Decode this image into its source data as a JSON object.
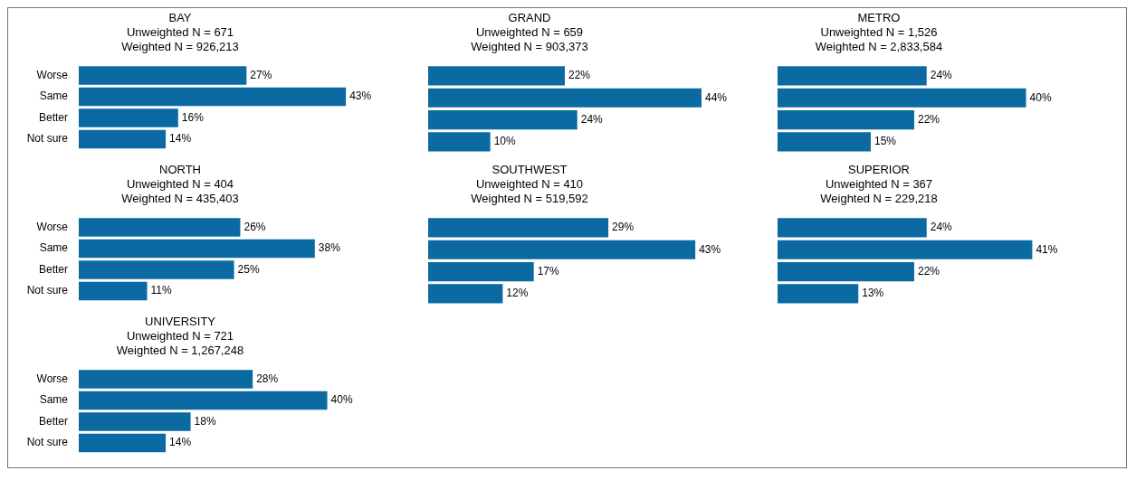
{
  "chart_data": [
    {
      "type": "bar",
      "orientation": "horizontal",
      "title": "BAY",
      "subtitle": "Unweighted N = 671\nWeighted N = 926,213",
      "categories": [
        "Worse",
        "Same",
        "Better",
        "Not sure"
      ],
      "values": [
        27,
        43,
        16,
        14
      ],
      "value_labels": [
        "27%",
        "43%",
        "16%",
        "14%"
      ],
      "color": "#0a6aa1",
      "legend": false,
      "tick_labels": "y"
    },
    {
      "type": "bar",
      "orientation": "horizontal",
      "title": "GRAND",
      "subtitle": "Unweighted N = 659\nWeighted N = 903,373",
      "categories": [
        null,
        null,
        null,
        null
      ],
      "values": [
        22,
        44,
        24,
        10
      ],
      "value_labels": [
        "22%",
        "44%",
        "24%",
        "10%"
      ],
      "color": "#0a6aa1",
      "legend": false,
      "tick_labels": false
    },
    {
      "type": "bar",
      "orientation": "horizontal",
      "title": "METRO",
      "subtitle": "Unweighted N = 1,526\nWeighted N = 2,833,584",
      "categories": [
        null,
        null,
        null,
        null
      ],
      "values": [
        24,
        40,
        22,
        15
      ],
      "value_labels": [
        "24%",
        "40%",
        "22%",
        "15%"
      ],
      "color": "#0a6aa1",
      "legend": false,
      "tick_labels": false
    },
    {
      "type": "bar",
      "orientation": "horizontal",
      "title": "NORTH",
      "subtitle": "Unweighted N = 404\nWeighted N = 435,403",
      "categories": [
        "Worse",
        "Same",
        "Better",
        "Not sure"
      ],
      "values": [
        26,
        38,
        25,
        11
      ],
      "value_labels": [
        "26%",
        "38%",
        "25%",
        "11%"
      ],
      "color": "#0a6aa1",
      "legend": false,
      "tick_labels": "y"
    },
    {
      "type": "bar",
      "orientation": "horizontal",
      "title": "SOUTHWEST",
      "subtitle": "Unweighted N = 410\nWeighted N = 519,592",
      "categories": [
        null,
        null,
        null,
        null
      ],
      "values": [
        29,
        43,
        17,
        12
      ],
      "value_labels": [
        "29%",
        "43%",
        "17%",
        "12%"
      ],
      "color": "#0a6aa1",
      "legend": false,
      "tick_labels": false
    },
    {
      "type": "bar",
      "orientation": "horizontal",
      "title": "SUPERIOR",
      "subtitle": "Unweighted N = 367\nWeighted N = 229,218",
      "categories": [
        null,
        null,
        null,
        null
      ],
      "values": [
        24,
        41,
        22,
        13
      ],
      "value_labels": [
        "24%",
        "41%",
        "22%",
        "13%"
      ],
      "color": "#0a6aa1",
      "legend": false,
      "tick_labels": false
    },
    {
      "type": "bar",
      "orientation": "horizontal",
      "title": "UNIVERSITY",
      "subtitle": "Unweighted N = 721\nWeighted N = 1,267,248",
      "categories": [
        "Worse",
        "Same",
        "Better",
        "Not sure"
      ],
      "values": [
        28,
        40,
        18,
        14
      ],
      "value_labels": [
        "28%",
        "40%",
        "18%",
        "14%"
      ],
      "color": "#0a6aa1",
      "legend": false,
      "tick_labels": "y"
    }
  ]
}
